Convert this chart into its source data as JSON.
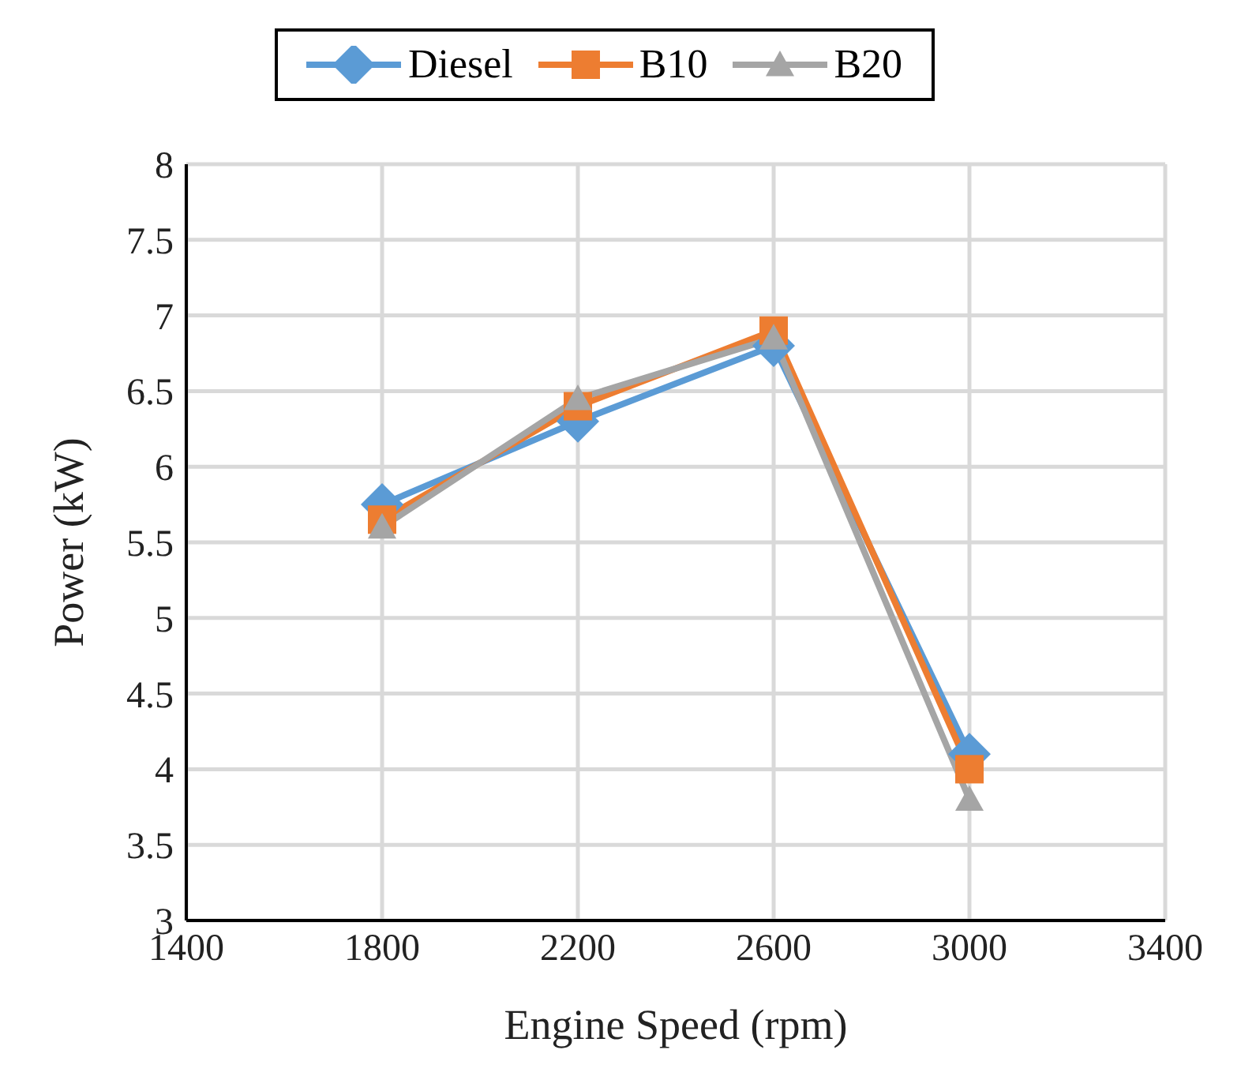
{
  "chart_data": {
    "type": "line",
    "xlabel": "Engine Speed (rpm)",
    "ylabel": "Power (kW)",
    "x": [
      1800,
      2200,
      2600,
      3000
    ],
    "series": [
      {
        "name": "Diesel",
        "color": "#5b9bd5",
        "values": [
          5.75,
          6.3,
          6.8,
          4.1
        ],
        "marker": "diamond"
      },
      {
        "name": "B10",
        "color": "#ed7d31",
        "values": [
          5.65,
          6.4,
          6.9,
          4.0
        ],
        "marker": "square"
      },
      {
        "name": "B20",
        "color": "#a5a5a5",
        "values": [
          5.6,
          6.45,
          6.85,
          3.8
        ],
        "marker": "triangle"
      }
    ],
    "xlim": [
      1400,
      3400
    ],
    "xticks": [
      1400,
      1800,
      2200,
      2600,
      3000,
      3400
    ],
    "ylim": [
      3,
      8
    ],
    "yticks": [
      3,
      3.5,
      4,
      4.5,
      5,
      5.5,
      6,
      6.5,
      7,
      7.5,
      8
    ],
    "grid": true,
    "legend": "top",
    "line_style": "solid"
  }
}
